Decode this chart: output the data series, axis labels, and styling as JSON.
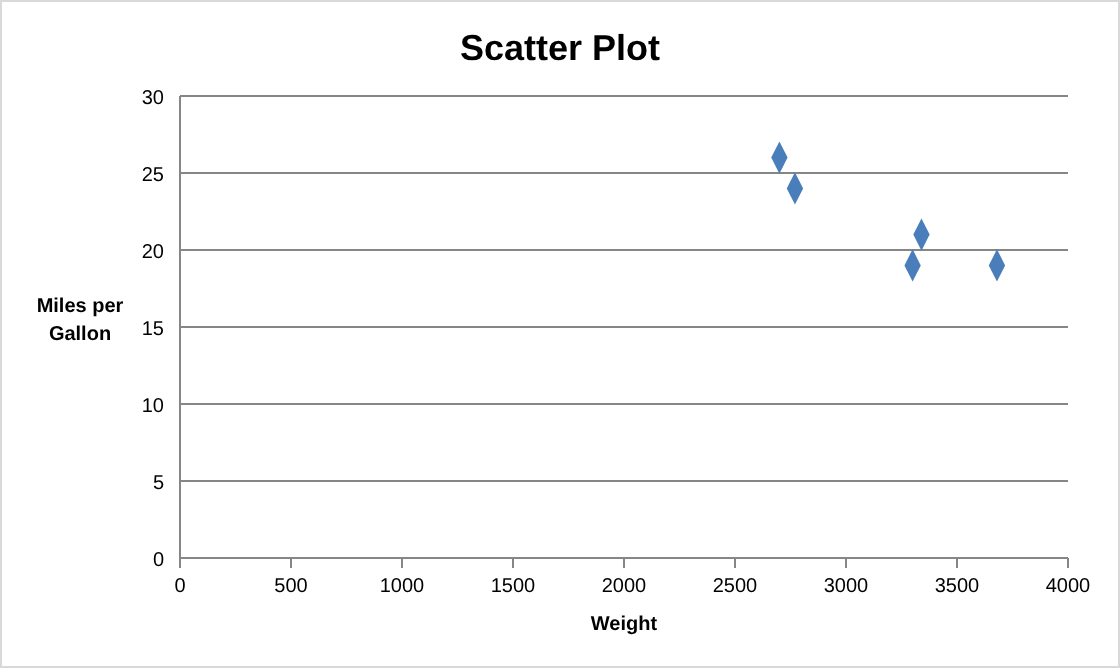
{
  "chart_data": {
    "type": "scatter",
    "title": "Scatter Plot",
    "xlabel": "Weight",
    "ylabel": "Miles per Gallon",
    "x": [
      2700,
      2770,
      3340,
      3300,
      3680
    ],
    "values": [
      26,
      24,
      21,
      19,
      19
    ],
    "color": "#4a7ebb",
    "marker": "diamond",
    "xlim": [
      0,
      4000
    ],
    "xticks": [
      0,
      500,
      1000,
      1500,
      2000,
      2500,
      3000,
      3500,
      4000
    ],
    "ylim": [
      0,
      30
    ],
    "yticks": [
      0,
      5,
      10,
      15,
      20,
      25,
      30
    ],
    "grid": "y"
  }
}
